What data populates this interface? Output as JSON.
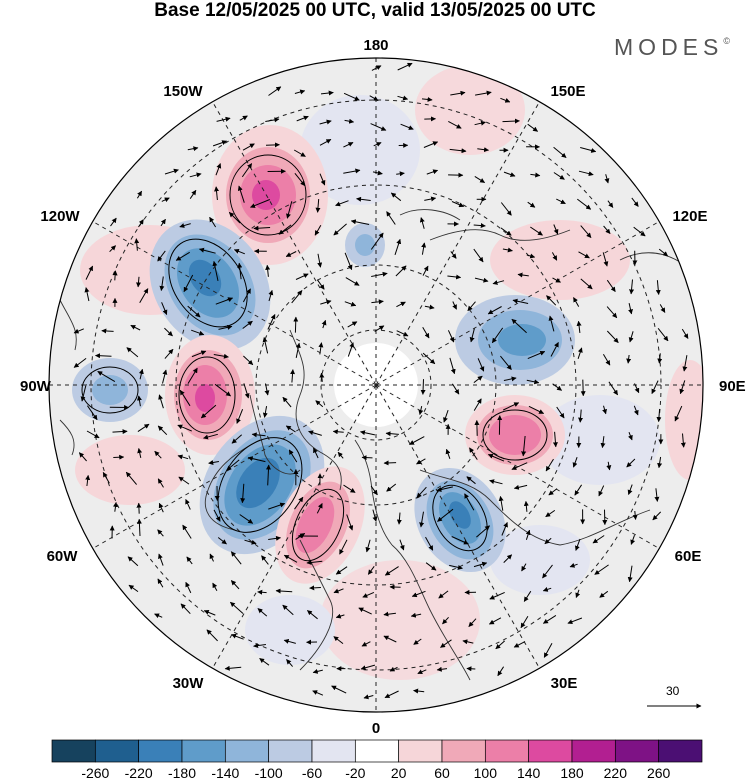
{
  "header": {
    "title": "Base 12/05/2025 00 UTC, valid 13/05/2025 00 UTC",
    "brand": "MODES",
    "brand_mark": "©"
  },
  "map": {
    "projection": "north-polar-stereographic",
    "longitude_labels": {
      "top": "180",
      "bottom": "0",
      "left": "90W",
      "right": "90E",
      "upper_left_1": "150W",
      "upper_left_2": "120W",
      "lower_left_1": "60W",
      "lower_left_2": "30W",
      "upper_right_1": "150E",
      "upper_right_2": "120E",
      "lower_right_1": "60E",
      "lower_right_2": "30E"
    },
    "reference_vector": "30",
    "colors": {
      "negative_max": "#1a4a6e",
      "positive_max": "#5c1a7a",
      "neutral_fill": "#ececec"
    }
  },
  "colorbar": {
    "labels": [
      "-260",
      "-220",
      "-180",
      "-140",
      "-100",
      "-60",
      "-20",
      "20",
      "60",
      "100",
      "140",
      "180",
      "220",
      "260"
    ],
    "colors": [
      "#16425e",
      "#1f5f8f",
      "#3a80b8",
      "#5f9cca",
      "#8fb5da",
      "#bccbe3",
      "#e3e5f1",
      "#ffffff",
      "#f6d6d9",
      "#f0a9b8",
      "#ec7fa8",
      "#dd4aa0",
      "#b21f91",
      "#7e1285",
      "#4b0f73"
    ]
  }
}
